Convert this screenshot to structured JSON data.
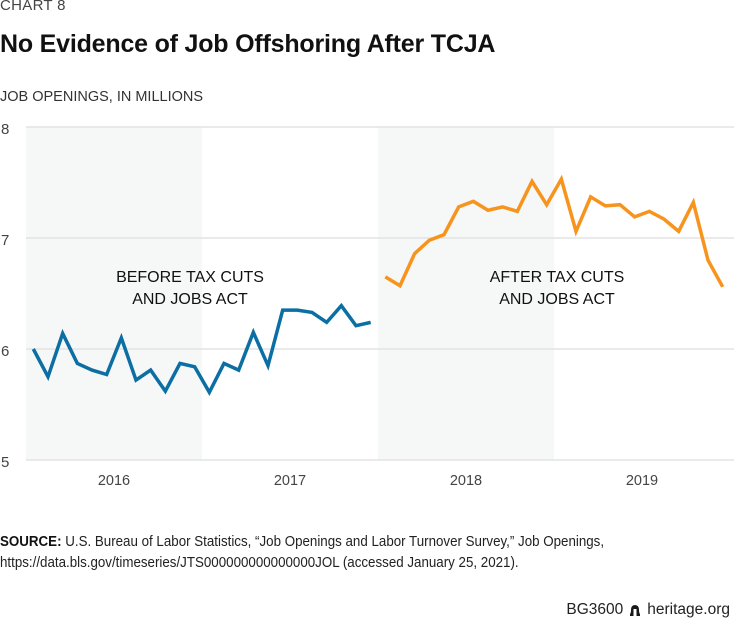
{
  "header": {
    "kicker": "CHART 8",
    "title": "No Evidence of Job Offshoring After TCJA",
    "units_label": "JOB OPENINGS, IN MILLIONS"
  },
  "chart_data": {
    "type": "line",
    "title": "No Evidence of Job Offshoring After TCJA",
    "xlabel": "",
    "ylabel": "JOB OPENINGS, IN MILLIONS",
    "ylim": [
      5,
      8
    ],
    "yticks": [
      5,
      6,
      7,
      8
    ],
    "x_tick_labels": [
      "2016",
      "2017",
      "2018",
      "2019"
    ],
    "grid": true,
    "shaded_years": [
      "2016",
      "2018"
    ],
    "annotations": [
      {
        "line1": "BEFORE TAX CUTS",
        "line2": "AND JOBS ACT",
        "period": "2016–2017"
      },
      {
        "line1": "AFTER TAX CUTS",
        "line2": "AND JOBS ACT",
        "period": "2018–2019"
      }
    ],
    "series": [
      {
        "name": "Before Tax Cuts and Jobs Act",
        "color": "#0b6fa4",
        "start": "2016-01",
        "values": [
          6.0,
          5.75,
          6.14,
          5.87,
          5.81,
          5.77,
          6.1,
          5.72,
          5.81,
          5.62,
          5.87,
          5.84,
          5.61,
          5.87,
          5.81,
          6.15,
          5.85,
          6.35,
          6.35,
          6.33,
          6.24,
          6.39,
          6.21,
          6.24
        ]
      },
      {
        "name": "After Tax Cuts and Jobs Act",
        "color": "#f7941d",
        "start": "2018-01",
        "values": [
          6.65,
          6.57,
          6.86,
          6.98,
          7.03,
          7.28,
          7.33,
          7.25,
          7.28,
          7.24,
          7.51,
          7.3,
          7.53,
          7.06,
          7.37,
          7.29,
          7.3,
          7.19,
          7.24,
          7.17,
          7.06,
          7.32,
          6.8,
          6.56
        ]
      }
    ]
  },
  "footer": {
    "source_label": "SOURCE:",
    "source_text": " U.S. Bureau of Labor Statistics, “Job Openings and Labor Turnover Survey,” Job Openings,",
    "source_text2": "https://data.bls.gov/timeseries/JTS000000000000000JOL (accessed January 25, 2021).",
    "report_id": "BG3600",
    "site": "heritage.org"
  }
}
